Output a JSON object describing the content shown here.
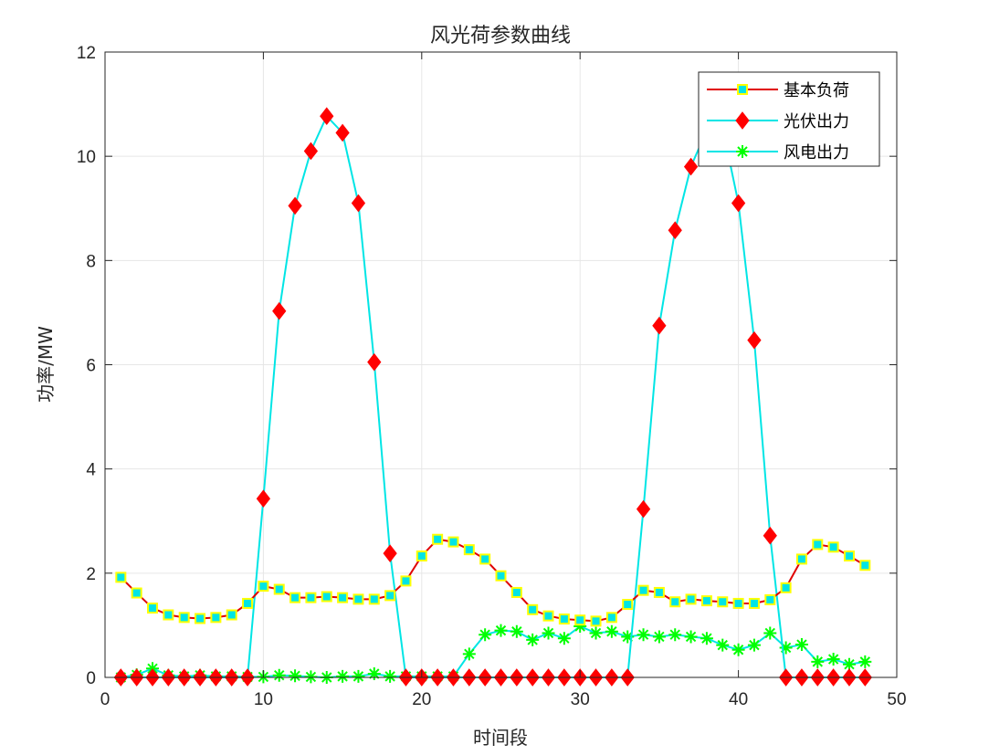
{
  "chart_data": {
    "type": "line",
    "title": "风光荷参数曲线",
    "xlabel": "时间段",
    "ylabel": "功率/MW",
    "xlim": [
      0,
      50
    ],
    "ylim": [
      0,
      12
    ],
    "xticks": [
      0,
      10,
      20,
      30,
      40,
      50
    ],
    "yticks": [
      0,
      2,
      4,
      6,
      8,
      10,
      12
    ],
    "grid": true,
    "legend_position": "top-right",
    "x": [
      1,
      2,
      3,
      4,
      5,
      6,
      7,
      8,
      9,
      10,
      11,
      12,
      13,
      14,
      15,
      16,
      17,
      18,
      19,
      20,
      21,
      22,
      23,
      24,
      25,
      26,
      27,
      28,
      29,
      30,
      31,
      32,
      33,
      34,
      35,
      36,
      37,
      38,
      39,
      40,
      41,
      42,
      43,
      44,
      45,
      46,
      47,
      48
    ],
    "series": [
      {
        "name": "基本负荷",
        "line_color": "#e00000",
        "marker": "square",
        "marker_face": "#00e5e5",
        "marker_edge": "#ffff00",
        "values": [
          1.92,
          1.62,
          1.33,
          1.2,
          1.15,
          1.13,
          1.15,
          1.2,
          1.42,
          1.75,
          1.69,
          1.53,
          1.53,
          1.55,
          1.53,
          1.5,
          1.5,
          1.57,
          1.85,
          2.33,
          2.65,
          2.6,
          2.45,
          2.27,
          1.95,
          1.63,
          1.3,
          1.18,
          1.12,
          1.1,
          1.08,
          1.15,
          1.4,
          1.67,
          1.63,
          1.45,
          1.5,
          1.47,
          1.45,
          1.42,
          1.42,
          1.49,
          1.72,
          2.27,
          2.55,
          2.5,
          2.33,
          2.15
        ]
      },
      {
        "name": "光伏出力",
        "line_color": "#00e5e5",
        "marker": "diamond",
        "marker_face": "#ff0000",
        "marker_edge": "#ff0000",
        "values": [
          0,
          0,
          0,
          0,
          0,
          0,
          0,
          0,
          0,
          3.43,
          7.03,
          9.05,
          10.1,
          10.77,
          10.45,
          9.1,
          6.05,
          2.38,
          0,
          0,
          0,
          0,
          0,
          0,
          0,
          0,
          0,
          0,
          0,
          0,
          0,
          0,
          0,
          3.23,
          6.75,
          8.58,
          9.8,
          10.5,
          10.55,
          9.1,
          6.47,
          2.72,
          0,
          0,
          0,
          0,
          0,
          0
        ]
      },
      {
        "name": "风电出力",
        "line_color": "#00e5e5",
        "marker": "asterisk",
        "marker_face": "#00ff00",
        "marker_edge": "#00ff00",
        "values": [
          0,
          0.05,
          0.17,
          0.04,
          0.02,
          0.04,
          0.02,
          0.02,
          0.01,
          0.01,
          0.04,
          0.03,
          0.01,
          0,
          0.02,
          0.02,
          0.07,
          0.02,
          0.02,
          0.02,
          0.02,
          0.02,
          0.45,
          0.82,
          0.9,
          0.88,
          0.72,
          0.85,
          0.75,
          0.98,
          0.85,
          0.88,
          0.78,
          0.82,
          0.78,
          0.82,
          0.78,
          0.75,
          0.62,
          0.53,
          0.62,
          0.85,
          0.57,
          0.63,
          0.3,
          0.35,
          0.25,
          0.3
        ]
      }
    ]
  }
}
